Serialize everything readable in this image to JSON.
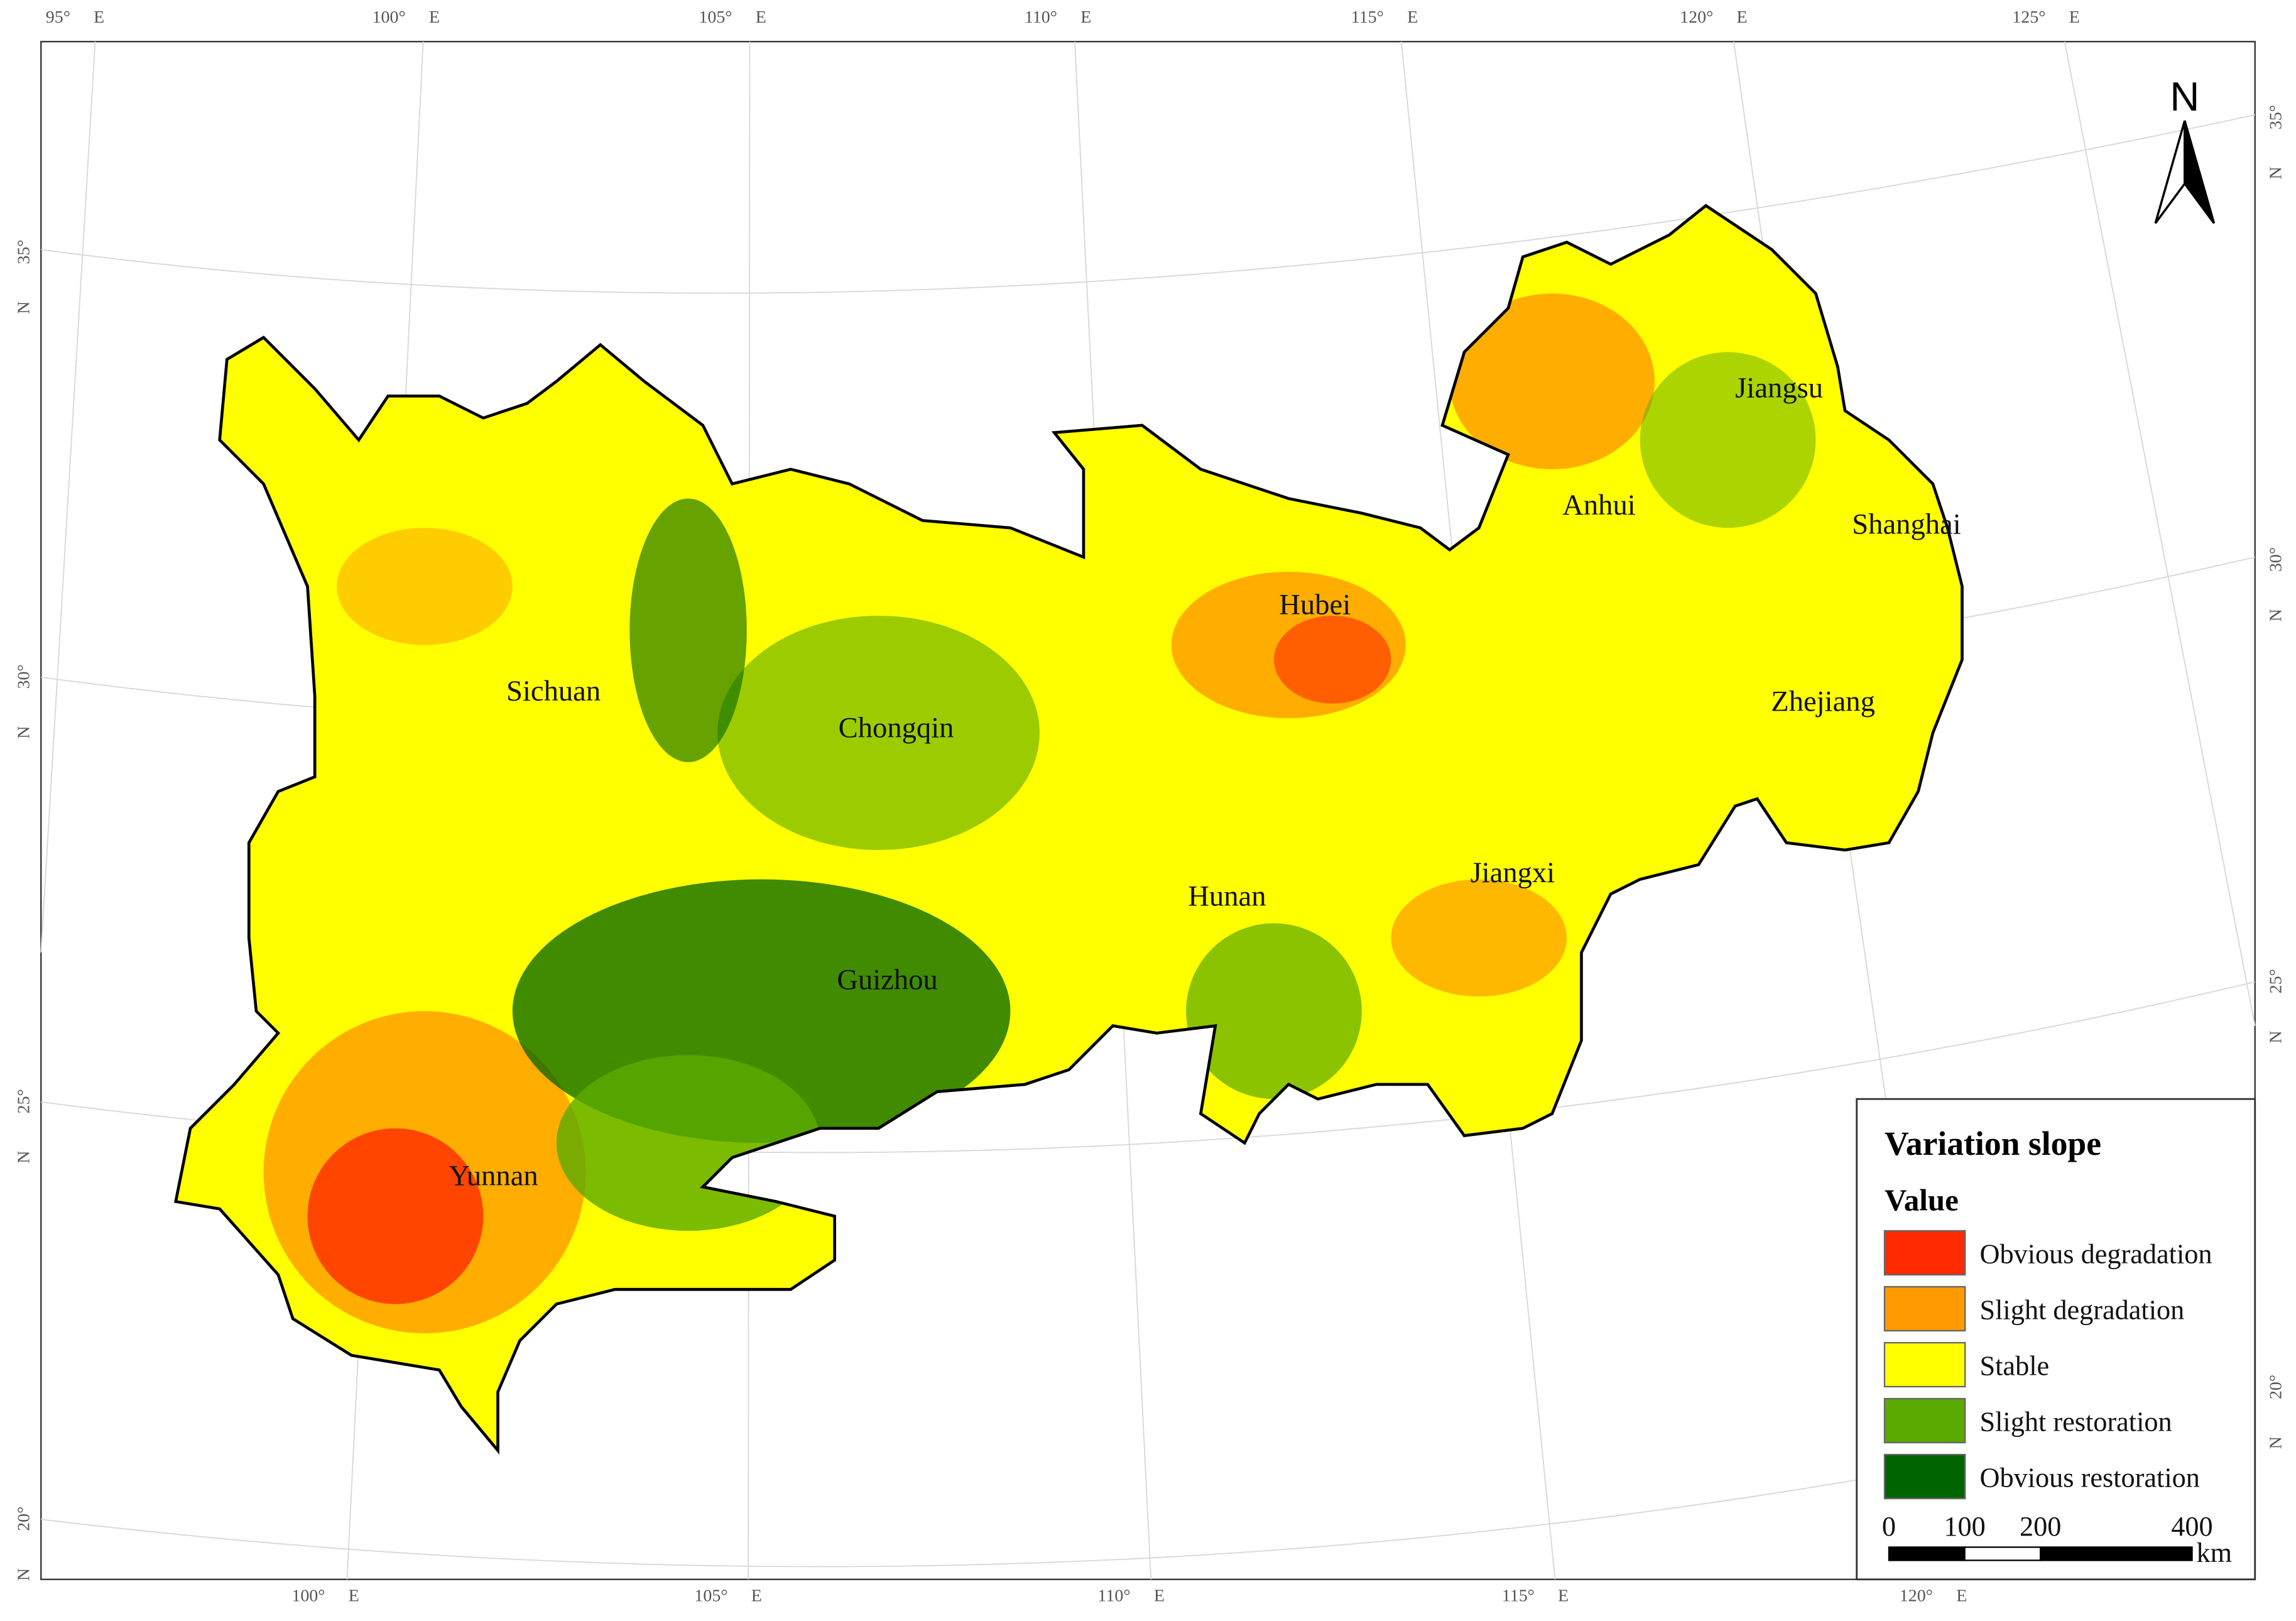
{
  "graticule": {
    "top": [
      {
        "deg": "95°",
        "dir": "E"
      },
      {
        "deg": "100°",
        "dir": "E"
      },
      {
        "deg": "105°",
        "dir": "E"
      },
      {
        "deg": "110°",
        "dir": "E"
      },
      {
        "deg": "115°",
        "dir": "E"
      },
      {
        "deg": "120°",
        "dir": "E"
      },
      {
        "deg": "125°",
        "dir": "E"
      }
    ],
    "bottom": [
      {
        "deg": "100°",
        "dir": "E"
      },
      {
        "deg": "105°",
        "dir": "E"
      },
      {
        "deg": "110°",
        "dir": "E"
      },
      {
        "deg": "115°",
        "dir": "E"
      },
      {
        "deg": "120°",
        "dir": "E"
      }
    ],
    "left": [
      {
        "deg": "35°",
        "dir": "N"
      },
      {
        "deg": "30°",
        "dir": "N"
      },
      {
        "deg": "25°",
        "dir": "N"
      },
      {
        "deg": "20°",
        "dir": "N"
      }
    ],
    "right": [
      {
        "deg": "35°",
        "dir": "N"
      },
      {
        "deg": "30°",
        "dir": "N"
      },
      {
        "deg": "25°",
        "dir": "N"
      },
      {
        "deg": "20°",
        "dir": "N"
      }
    ]
  },
  "provinces": [
    "Sichuan",
    "Chongqin",
    "Guizhou",
    "Yunnan",
    "Hubei",
    "Hunan",
    "Jiangxi",
    "Anhui",
    "Jiangsu",
    "Shanghai",
    "Zhejiang"
  ],
  "north_arrow": "N",
  "legend": {
    "title": "Variation slope",
    "subtitle": "Value",
    "items": [
      {
        "label": "Obvious degradation",
        "color": "#ff2a00"
      },
      {
        "label": "Slight degradation",
        "color": "#ff9a00"
      },
      {
        "label": "Stable",
        "color": "#ffff00"
      },
      {
        "label": "Slight restoration",
        "color": "#5aaa00"
      },
      {
        "label": "Obvious restoration",
        "color": "#006400"
      }
    ]
  },
  "scale_bar": {
    "ticks": [
      0,
      100,
      200,
      400
    ],
    "unit": "km"
  }
}
